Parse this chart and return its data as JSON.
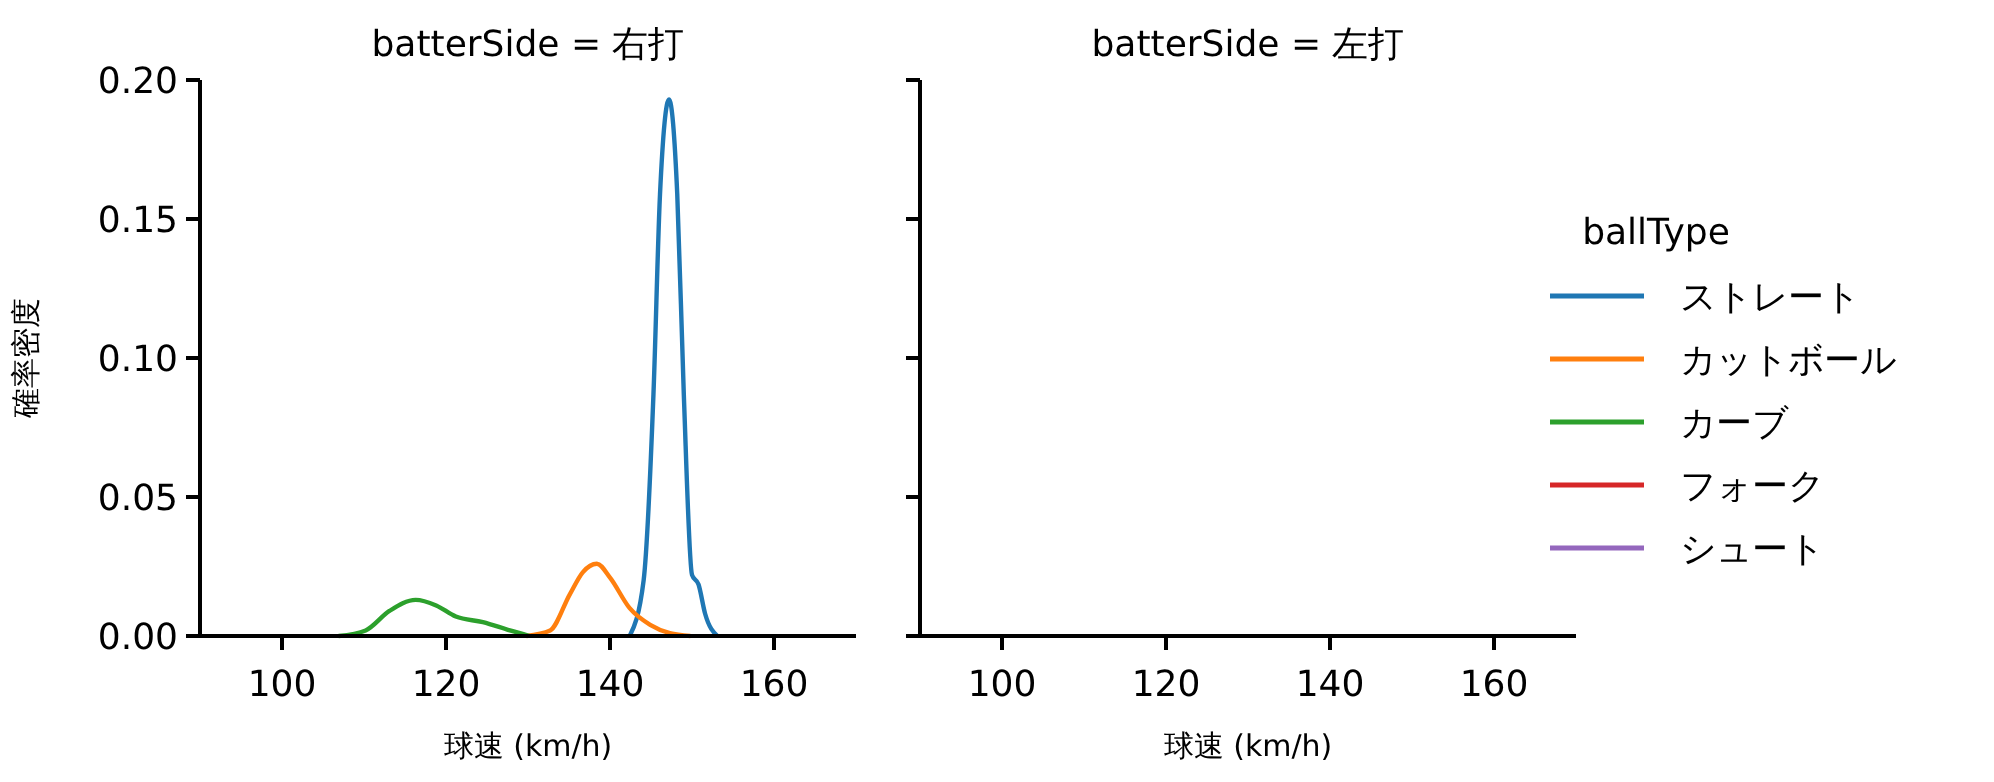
{
  "chart_data": [
    {
      "type": "line",
      "title": "batterSide = 右打",
      "xlabel": "球速 (km/h)",
      "ylabel": "確率密度",
      "legend_title": "ballType",
      "legend": "right",
      "xlim": [
        90,
        170
      ],
      "xticks": [
        100,
        120,
        140,
        160
      ],
      "ylim": [
        0,
        0.2
      ],
      "yticks": [
        {
          "value": 0,
          "label": "0.00"
        },
        {
          "value": 0.05,
          "label": "0.05"
        },
        {
          "value": 0.1,
          "label": "0.10"
        },
        {
          "value": 0.15,
          "label": "0.15"
        },
        {
          "value": 0.2,
          "label": "0.20"
        }
      ],
      "series": [
        {
          "name": "ストレート",
          "color": "#1f77b4",
          "x": [
            142.4,
            144.1,
            145.3,
            146.1,
            147.2,
            148.2,
            149,
            150,
            150.8,
            151.6,
            153.1
          ],
          "values": [
            0,
            0.02,
            0.087,
            0.159,
            0.193,
            0.159,
            0.087,
            0.022,
            0.0185,
            0.008,
            0
          ]
        },
        {
          "name": "カットボール",
          "color": "#ff7f0e",
          "x": [
            129.8,
            132.7,
            135.1,
            136.7,
            138.4,
            140,
            142.4,
            144.9,
            147.3,
            149.8
          ],
          "values": [
            0,
            0.002,
            0.015,
            0.023,
            0.026,
            0.021,
            0.01,
            0.004,
            0.001,
            0
          ]
        },
        {
          "name": "カーブ",
          "color": "#2ca02c",
          "x": [
            106.9,
            110.2,
            113.1,
            116.3,
            118.8,
            121.2,
            124.5,
            127.8,
            130.2
          ],
          "values": [
            0,
            0.002,
            0.009,
            0.013,
            0.011,
            0.007,
            0.005,
            0.002,
            0
          ]
        },
        {
          "name": "フォーク",
          "color": "#d62728"
        },
        {
          "name": "シュート",
          "color": "#9467bd"
        }
      ]
    },
    {
      "type": "line",
      "title": "batterSide = 左打",
      "xlabel": "球速 (km/h)",
      "tick_labels": "x",
      "xlim": [
        90,
        170
      ],
      "xticks": [
        100,
        120,
        140,
        160
      ],
      "ylim": [
        0,
        0.2
      ],
      "yticks": [
        {
          "value": 0,
          "label": null
        },
        {
          "value": 0.05,
          "label": null
        },
        {
          "value": 0.1,
          "label": null
        },
        {
          "value": 0.15,
          "label": null
        },
        {
          "value": 0.2,
          "label": null
        }
      ]
    }
  ]
}
